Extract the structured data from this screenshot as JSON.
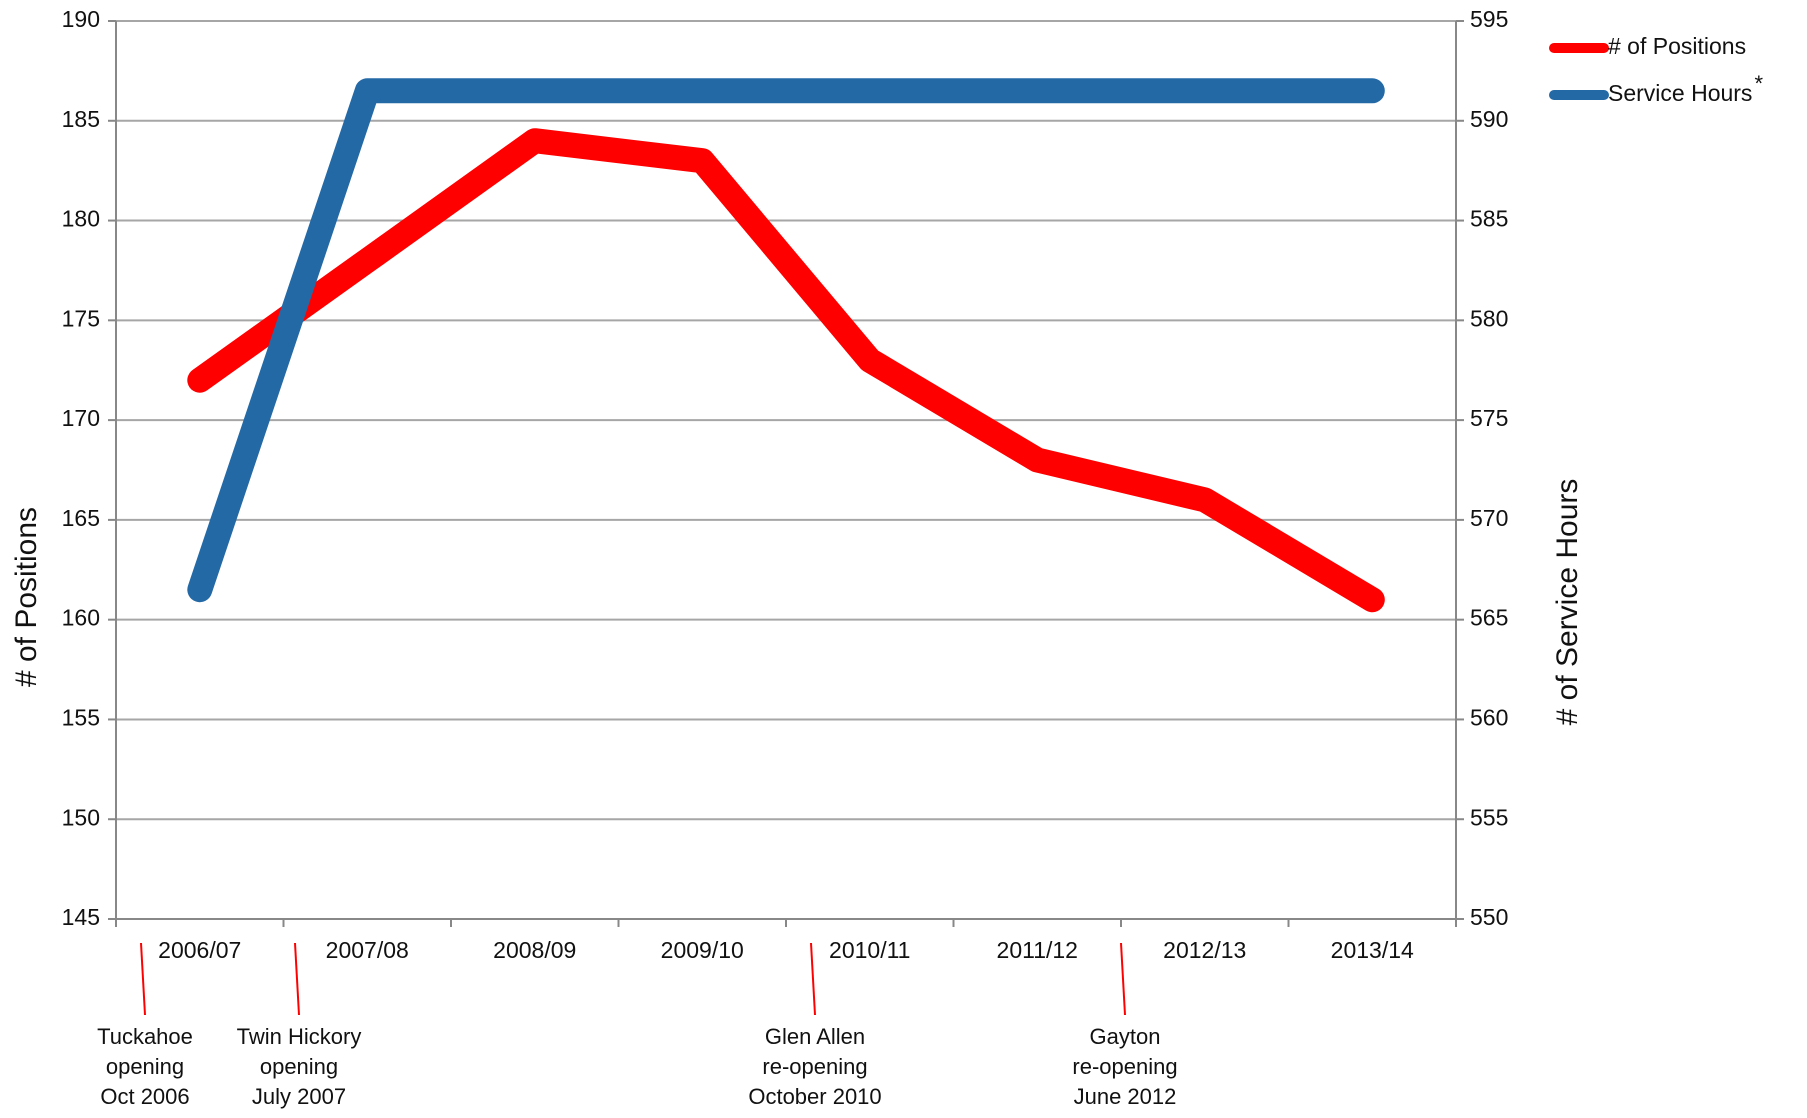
{
  "chart_data": {
    "type": "line",
    "categories": [
      "2006/07",
      "2007/08",
      "2008/09",
      "2009/10",
      "2010/11",
      "2011/12",
      "2012/13",
      "2013/14"
    ],
    "series": [
      {
        "name": "# of Positions",
        "color": "#ff0000",
        "values": [
          172,
          178,
          184,
          183,
          173,
          168,
          166,
          161
        ]
      },
      {
        "name": "Service Hours",
        "color": "#2369a6",
        "axis": "y2",
        "values": [
          566.5,
          591.5,
          591.5,
          591.5,
          591.5,
          591.5,
          591.5,
          591.5
        ]
      }
    ],
    "legend_note": "*",
    "ylabel": "# of Positions",
    "y2label": "# of Service Hours",
    "ylim": [
      145,
      190
    ],
    "yticks": [
      145,
      150,
      155,
      160,
      165,
      170,
      175,
      180,
      185,
      190
    ],
    "y2lim": [
      550,
      595
    ],
    "y2ticks": [
      550,
      555,
      560,
      565,
      570,
      575,
      580,
      585,
      590,
      595
    ],
    "grid": true,
    "legend": "upper right",
    "annotations": [
      {
        "lines": [
          "Tuckahoe",
          "opening",
          "Oct 2006"
        ]
      },
      {
        "lines": [
          "Twin Hickory",
          "opening",
          "July 2007"
        ]
      },
      {
        "lines": [
          "Glen Allen",
          "re-opening",
          "October 2010"
        ]
      },
      {
        "lines": [
          "Gayton",
          "re-opening",
          "June 2012"
        ]
      }
    ]
  }
}
